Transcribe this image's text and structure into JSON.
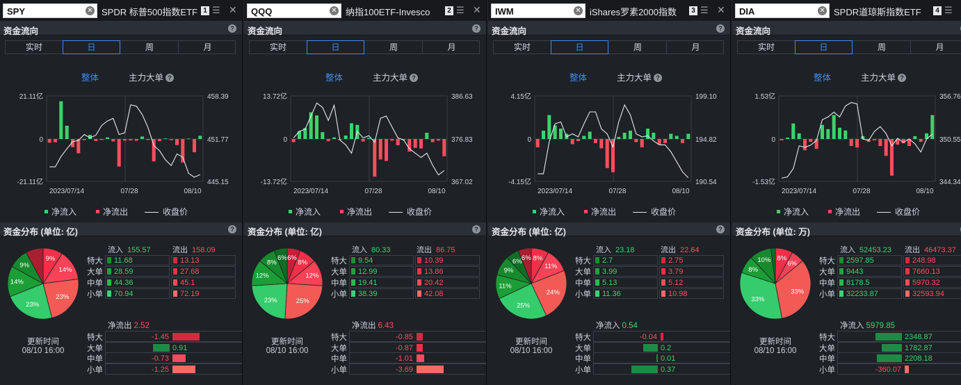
{
  "labels": {
    "flow_title": "资金流向",
    "tabs": [
      "实时",
      "日",
      "周",
      "月"
    ],
    "active_tab": 1,
    "sub_whole": "整体",
    "sub_main": "主力大单",
    "help": "?",
    "legend_in": "净流入",
    "legend_out": "净流出",
    "legend_close": "收盘价",
    "inflow": "流入",
    "outflow": "流出",
    "rows": [
      "特大",
      "大单",
      "中单",
      "小单"
    ],
    "update_label": "更新时间",
    "close_btn": "✕",
    "clear_btn": "✕",
    "tune_btn": "☰"
  },
  "colors": {
    "green": "#3bd46b",
    "red": "#ff4d5e",
    "accent": "#3d8df0"
  },
  "panels": [
    {
      "symbol": "SPY",
      "name": "SPDR 标普500指数ETF",
      "num": "1",
      "dist_title": "资金分布 (单位: 亿)",
      "chart_data": {
        "type": "bar",
        "x_labels": [
          "2023/07/14",
          "07/28",
          "08/10"
        ],
        "yleft": [
          "21.11亿",
          "0",
          "-21.11亿"
        ],
        "yright": [
          "458.39",
          "451.77",
          "445.15"
        ],
        "ylim": [
          -21.11,
          21.11
        ],
        "price_lim": [
          445.15,
          458.39
        ],
        "bars": [
          -1.8,
          -1.6,
          18.5,
          6.5,
          -4,
          -7,
          -0.6,
          2,
          -1,
          -0.5,
          0.8,
          -1.2,
          -13.5,
          -0.8,
          -0.7,
          -0.9,
          1.2,
          -0.5,
          -11,
          -1,
          0.3,
          -0.6,
          -3,
          -11.5,
          0.2,
          -6.5,
          1.6
        ],
        "price": [
          447.4,
          447.4,
          449.0,
          450.2,
          451.3,
          451.5,
          452.4,
          451.9,
          452.3,
          453.8,
          454.5,
          454.9,
          452.4,
          452.7,
          457.0,
          456.8,
          455.5,
          453.5,
          450.7,
          449.9,
          448.5,
          447.6,
          449.4,
          448.9,
          446.4,
          445.8,
          446.2
        ]
      },
      "inflow": "155.57",
      "outflow": "158.09",
      "in_vals": [
        "11.68",
        "28.59",
        "44.36",
        "70.94"
      ],
      "out_vals": [
        "13.13",
        "27.68",
        "45.1",
        "72.19"
      ],
      "pie": [
        {
          "pct": "9%",
          "v": 9,
          "color": "#ef3048"
        },
        {
          "pct": "14%",
          "v": 14,
          "color": "#f74257"
        },
        {
          "pct": "23%",
          "v": 23,
          "color": "#f25b55"
        },
        {
          "pct": "23%",
          "v": 23,
          "color": "#35cc6b"
        },
        {
          "pct": "14%",
          "v": 14,
          "color": "#1b9e36"
        },
        {
          "pct": "9%",
          "v": 9,
          "color": "#178a2e"
        },
        {
          "pct": "",
          "v": 8,
          "color": "#a91f30"
        }
      ],
      "net_label": "净流出",
      "net_value": "2.52",
      "net_vals": [
        "-1.45",
        "0.91",
        "-0.73",
        "-1.25"
      ],
      "net_nums": [
        -1.45,
        0.91,
        -0.73,
        -1.25
      ],
      "update_time": "08/10 16:00"
    },
    {
      "symbol": "QQQ",
      "name": "纳指100ETF-Invesco",
      "num": "2",
      "dist_title": "资金分布 (单位: 亿)",
      "chart_data": {
        "type": "bar",
        "x_labels": [
          "2023/07/14",
          "07/28",
          "08/10"
        ],
        "yleft": [
          "13.72亿",
          "0",
          "-13.72亿"
        ],
        "yright": [
          "386.63",
          "376.83",
          "367.02"
        ],
        "ylim": [
          -13.72,
          13.72
        ],
        "price_lim": [
          367.02,
          386.63
        ],
        "bars": [
          -1,
          2.5,
          3.5,
          8.5,
          7.5,
          2.2,
          -0.7,
          0.5,
          -0.4,
          1.1,
          5,
          4.5,
          -0.8,
          0.3,
          -12,
          -6.5,
          -7,
          -0.5,
          -2,
          -0.4,
          -4,
          -2.8,
          -3,
          2,
          -1,
          -0.5,
          -5.5
        ],
        "price": [
          377,
          378.5,
          379,
          382,
          385,
          384,
          381,
          384.5,
          376.5,
          375.4,
          373.5,
          378.5,
          377,
          377.5,
          376,
          381.5,
          382,
          379.5,
          377,
          376.5,
          374.5,
          373.5,
          372.5,
          373.5,
          370.7,
          368.5,
          369.5
        ]
      },
      "inflow": "80.33",
      "outflow": "86.75",
      "in_vals": [
        "9.54",
        "12.99",
        "19.41",
        "38.39"
      ],
      "out_vals": [
        "10.39",
        "13.86",
        "20.42",
        "42.08"
      ],
      "pie": [
        {
          "pct": "6%",
          "v": 6,
          "color": "#c52038"
        },
        {
          "pct": "8%",
          "v": 8,
          "color": "#ef3048"
        },
        {
          "pct": "12%",
          "v": 12,
          "color": "#f74257"
        },
        {
          "pct": "25%",
          "v": 25,
          "color": "#f25b55"
        },
        {
          "pct": "23%",
          "v": 23,
          "color": "#35cc6b"
        },
        {
          "pct": "12%",
          "v": 12,
          "color": "#1b9e36"
        },
        {
          "pct": "8%",
          "v": 8,
          "color": "#178a2e"
        },
        {
          "pct": "6%",
          "v": 6,
          "color": "#0f6e25"
        }
      ],
      "net_label": "净流出",
      "net_value": "6.43",
      "net_vals": [
        "-0.85",
        "-0.87",
        "-1.01",
        "-3.69"
      ],
      "net_nums": [
        -0.85,
        -0.87,
        -1.01,
        -3.69
      ],
      "update_time": "08/10 16:00"
    },
    {
      "symbol": "IWM",
      "name": "iShares罗素2000指数",
      "num": "3",
      "dist_title": "资金分布 (单位: 亿)",
      "chart_data": {
        "type": "bar",
        "x_labels": [
          "2023/07/14",
          "07/28",
          "08/10"
        ],
        "yleft": [
          "4.15亿",
          "0",
          "-4.15亿"
        ],
        "yright": [
          "199.10",
          "194.82",
          "190.54"
        ],
        "ylim": [
          -4.15,
          4.15
        ],
        "price_lim": [
          190.54,
          199.1
        ],
        "bars": [
          -0.8,
          0.8,
          2.3,
          1.3,
          1,
          0.5,
          -0.5,
          -0.2,
          0.3,
          0.7,
          -0.4,
          -0.9,
          -2.8,
          -3.2,
          0.2,
          0.6,
          0.8,
          -0.3,
          -0.8,
          1,
          0.6,
          -0.5,
          -0.4,
          0.5,
          0.3,
          -0.4,
          0.5
        ],
        "price": [
          191.3,
          191.3,
          194.5,
          196.3,
          196.5,
          195,
          195.3,
          195,
          196.3,
          197.5,
          197.5,
          195.8,
          195.3,
          194,
          196.5,
          198.2,
          197.2,
          195.3,
          195,
          195.1,
          194.6,
          194.2,
          194.2,
          193.5,
          192.5,
          191.5,
          190.9
        ]
      },
      "inflow": "23.18",
      "outflow": "22.64",
      "in_vals": [
        "2.7",
        "3.99",
        "5.13",
        "11.36"
      ],
      "out_vals": [
        "2.75",
        "3.79",
        "5.12",
        "10.98"
      ],
      "pie": [
        {
          "pct": "8%",
          "v": 8,
          "color": "#ef3048"
        },
        {
          "pct": "11%",
          "v": 11,
          "color": "#f74257"
        },
        {
          "pct": "24%",
          "v": 24,
          "color": "#f25b55"
        },
        {
          "pct": "25%",
          "v": 25,
          "color": "#35cc6b"
        },
        {
          "pct": "11%",
          "v": 11,
          "color": "#1b9e36"
        },
        {
          "pct": "9%",
          "v": 9,
          "color": "#178a2e"
        },
        {
          "pct": "6%",
          "v": 6,
          "color": "#0f6e25"
        },
        {
          "pct": "6%",
          "v": 6,
          "color": "#a91f30"
        }
      ],
      "net_label": "净流入",
      "net_value": "0.54",
      "net_vals": [
        "-0.04",
        "0.2",
        "0.01",
        "0.37"
      ],
      "net_nums": [
        -0.04,
        0.2,
        0.01,
        0.37
      ],
      "update_time": "08/10 16:00"
    },
    {
      "symbol": "DIA",
      "name": "SPDR道琼斯指数ETF",
      "num": "4",
      "dist_title": "资金分布 (单位: 万)",
      "chart_data": {
        "type": "bar",
        "x_labels": [
          "2023/07/14",
          "07/28",
          "08/10"
        ],
        "yleft": [
          "1.53亿",
          "0",
          "-1.53亿"
        ],
        "yright": [
          "356.76",
          "350.55",
          "344.34"
        ],
        "ylim": [
          -1.53,
          1.53
        ],
        "price_lim": [
          344.34,
          356.76
        ],
        "bars": [
          -0.05,
          0.05,
          0.55,
          0.2,
          -0.4,
          -0.1,
          -0.35,
          0.5,
          0.35,
          0.85,
          0.4,
          0.3,
          -0.25,
          -0.3,
          0.1,
          -0.1,
          -0.05,
          -0.25,
          -0.6,
          -1.3,
          -0.2,
          -0.15,
          -0.25,
          0.1,
          -0.1,
          0.2,
          0.85
        ],
        "price": [
          344.8,
          345,
          346.2,
          349.5,
          349.3,
          349.6,
          350.3,
          353.3,
          353.7,
          354.4,
          353.7,
          355.3,
          355.8,
          355.6,
          350.5,
          350.3,
          351.6,
          352.3,
          351.3,
          349.5,
          350.6,
          350,
          350.5,
          349.8,
          348.6,
          350.5,
          351.2
        ]
      },
      "inflow": "52453.23",
      "outflow": "46473.37",
      "in_vals": [
        "2597.85",
        "9443",
        "8178.5",
        "32233.87"
      ],
      "out_vals": [
        "248.98",
        "7660.13",
        "5970.32",
        "32593.94"
      ],
      "pie": [
        {
          "pct": "8%",
          "v": 8,
          "color": "#ef3048"
        },
        {
          "pct": "6%",
          "v": 6,
          "color": "#f74257"
        },
        {
          "pct": "33%",
          "v": 33,
          "color": "#f25b55"
        },
        {
          "pct": "33%",
          "v": 33,
          "color": "#35cc6b"
        },
        {
          "pct": "8%",
          "v": 8,
          "color": "#1b9e36"
        },
        {
          "pct": "10%",
          "v": 10,
          "color": "#178a2e"
        },
        {
          "pct": "",
          "v": 2,
          "color": "#0f6e25"
        }
      ],
      "net_label": "净流入",
      "net_value": "5979.85",
      "net_vals": [
        "2348.87",
        "1782.87",
        "2208.18",
        "-360.07"
      ],
      "net_nums": [
        2348.87,
        1782.87,
        2208.18,
        -360.07
      ],
      "update_time": "08/10 16:00"
    }
  ]
}
